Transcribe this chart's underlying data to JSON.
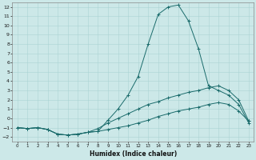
{
  "xlabel": "Humidex (Indice chaleur)",
  "bg_color": "#cce8e8",
  "line_color": "#1a6b6b",
  "grid_color": "#aad4d4",
  "xlim": [
    -0.5,
    23.5
  ],
  "ylim": [
    -2.5,
    12.5
  ],
  "xticks": [
    0,
    1,
    2,
    3,
    4,
    5,
    6,
    7,
    8,
    9,
    10,
    11,
    12,
    13,
    14,
    15,
    16,
    17,
    18,
    19,
    20,
    21,
    22,
    23
  ],
  "yticks": [
    -2,
    -1,
    0,
    1,
    2,
    3,
    4,
    5,
    6,
    7,
    8,
    9,
    10,
    11,
    12
  ],
  "line1_x": [
    0,
    1,
    2,
    3,
    4,
    5,
    6,
    7,
    8,
    9,
    10,
    11,
    12,
    13,
    14,
    15,
    16,
    17,
    18,
    19,
    20,
    21,
    22,
    23
  ],
  "line1_y": [
    -1,
    -1.1,
    -1.0,
    -1.2,
    -1.7,
    -1.8,
    -1.7,
    -1.5,
    -1.4,
    -0.2,
    1.0,
    2.5,
    4.5,
    8.0,
    11.2,
    12.0,
    12.2,
    10.5,
    7.5,
    3.5,
    3.0,
    2.5,
    1.5,
    -0.5
  ],
  "line2_x": [
    0,
    1,
    2,
    3,
    4,
    5,
    6,
    7,
    8,
    9,
    10,
    11,
    12,
    13,
    14,
    15,
    16,
    17,
    18,
    19,
    20,
    21,
    22,
    23
  ],
  "line2_y": [
    -1,
    -1.1,
    -1.0,
    -1.2,
    -1.7,
    -1.8,
    -1.7,
    -1.5,
    -1.4,
    -1.2,
    -1.0,
    -0.8,
    -0.5,
    -0.2,
    0.2,
    0.5,
    0.8,
    1.0,
    1.2,
    1.5,
    1.7,
    1.5,
    0.8,
    -0.3
  ],
  "line3_x": [
    0,
    1,
    2,
    3,
    4,
    5,
    6,
    7,
    8,
    9,
    10,
    11,
    12,
    13,
    14,
    15,
    16,
    17,
    18,
    19,
    20,
    21,
    22,
    23
  ],
  "line3_y": [
    -1,
    -1.1,
    -1.0,
    -1.2,
    -1.7,
    -1.8,
    -1.7,
    -1.5,
    -1.1,
    -0.5,
    0.0,
    0.5,
    1.0,
    1.5,
    1.8,
    2.2,
    2.5,
    2.8,
    3.0,
    3.3,
    3.5,
    3.0,
    2.0,
    -0.3
  ]
}
